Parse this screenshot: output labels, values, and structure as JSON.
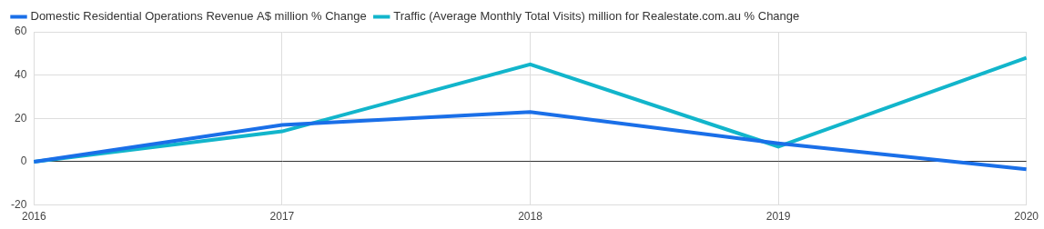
{
  "chart_data": {
    "type": "line",
    "categories": [
      "2016",
      "2017",
      "2018",
      "2019",
      "2020"
    ],
    "series": [
      {
        "name": "Domestic Residential Operations Revenue A$ million % Change",
        "color": "#1a6fe8",
        "values": [
          0,
          17,
          23,
          8.5,
          -3.5
        ]
      },
      {
        "name": "Traffic (Average Monthly Total Visits) million for Realestate.com.au % Change",
        "color": "#12b5cb",
        "values": [
          0,
          14,
          45,
          7,
          48
        ]
      }
    ],
    "ylim": [
      -20,
      60
    ],
    "yticks": [
      -20,
      0,
      20,
      40,
      60
    ],
    "grid": true,
    "legend": "top-left"
  }
}
